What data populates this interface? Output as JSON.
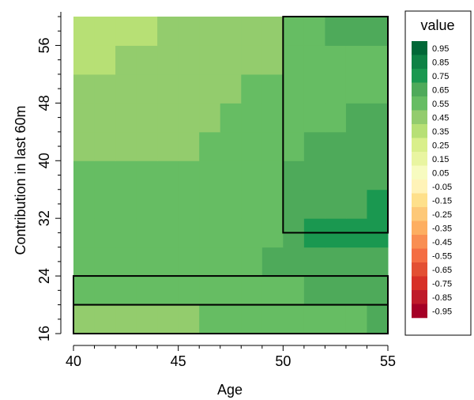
{
  "chart_data": {
    "type": "heatmap",
    "xlabel": "Age",
    "ylabel": "Contribution in last 60m",
    "x_ticks": [
      40,
      45,
      50,
      55
    ],
    "y_ticks": [
      16,
      24,
      32,
      40,
      48,
      56
    ],
    "xlim": [
      40,
      55
    ],
    "ylim": [
      16,
      60
    ],
    "x_edges": [
      40,
      41,
      42,
      43,
      44,
      45,
      46,
      47,
      48,
      49,
      50,
      51,
      52,
      53,
      54,
      55
    ],
    "y_edges": [
      16,
      20,
      24,
      28,
      32,
      36,
      40,
      44,
      48,
      52,
      56,
      60
    ],
    "z": [
      [
        0.5,
        0.5,
        0.5,
        0.5,
        0.5,
        0.5,
        0.6,
        0.6,
        0.6,
        0.6,
        0.6,
        0.6,
        0.6,
        0.6,
        0.7
      ],
      [
        0.55,
        0.55,
        0.55,
        0.6,
        0.6,
        0.6,
        0.6,
        0.6,
        0.6,
        0.6,
        0.6,
        0.7,
        0.7,
        0.7,
        0.7
      ],
      [
        0.55,
        0.6,
        0.6,
        0.6,
        0.6,
        0.6,
        0.6,
        0.6,
        0.6,
        0.65,
        0.65,
        0.65,
        0.7,
        0.7,
        0.7
      ],
      [
        0.55,
        0.55,
        0.55,
        0.55,
        0.6,
        0.6,
        0.6,
        0.6,
        0.6,
        0.6,
        0.65,
        0.75,
        0.75,
        0.75,
        0.75
      ],
      [
        0.55,
        0.55,
        0.55,
        0.55,
        0.55,
        0.55,
        0.6,
        0.6,
        0.6,
        0.6,
        0.65,
        0.7,
        0.7,
        0.7,
        0.75
      ],
      [
        0.55,
        0.55,
        0.55,
        0.55,
        0.55,
        0.55,
        0.55,
        0.55,
        0.6,
        0.6,
        0.65,
        0.7,
        0.7,
        0.7,
        0.7
      ],
      [
        0.45,
        0.45,
        0.5,
        0.5,
        0.5,
        0.5,
        0.55,
        0.55,
        0.55,
        0.55,
        0.6,
        0.65,
        0.7,
        0.7,
        0.7
      ],
      [
        0.45,
        0.45,
        0.45,
        0.45,
        0.45,
        0.5,
        0.5,
        0.55,
        0.55,
        0.55,
        0.55,
        0.6,
        0.6,
        0.7,
        0.7
      ],
      [
        0.45,
        0.45,
        0.45,
        0.45,
        0.45,
        0.45,
        0.45,
        0.45,
        0.55,
        0.55,
        0.55,
        0.6,
        0.6,
        0.6,
        0.6
      ],
      [
        0.35,
        0.35,
        0.45,
        0.45,
        0.45,
        0.45,
        0.45,
        0.45,
        0.45,
        0.45,
        0.55,
        0.6,
        0.6,
        0.6,
        0.6
      ],
      [
        0.35,
        0.35,
        0.35,
        0.35,
        0.45,
        0.45,
        0.45,
        0.45,
        0.45,
        0.45,
        0.55,
        0.55,
        0.65,
        0.65,
        0.65
      ]
    ],
    "rectangles": [
      {
        "x0": 40,
        "x1": 55,
        "y0": 16,
        "y1": 20
      },
      {
        "x0": 40,
        "x1": 55,
        "y0": 20,
        "y1": 24
      },
      {
        "x0": 50,
        "x1": 55,
        "y0": 30,
        "y1": 60
      }
    ],
    "legend": {
      "title": "value",
      "position": "right",
      "entries": [
        {
          "label": "0.95",
          "color": "#006837"
        },
        {
          "label": "0.85",
          "color": "#0e8245"
        },
        {
          "label": "0.75",
          "color": "#1a9850"
        },
        {
          "label": "0.65",
          "color": "#4eaa5a"
        },
        {
          "label": "0.55",
          "color": "#66bd63"
        },
        {
          "label": "0.45",
          "color": "#93cc6d"
        },
        {
          "label": "0.35",
          "color": "#b7e075"
        },
        {
          "label": "0.25",
          "color": "#d9ef8b"
        },
        {
          "label": "0.15",
          "color": "#e9f5a1"
        },
        {
          "label": "0.05",
          "color": "#f7fbc0"
        },
        {
          "label": "-0.05",
          "color": "#fff3b8"
        },
        {
          "label": "-0.15",
          "color": "#fee08b"
        },
        {
          "label": "-0.25",
          "color": "#fdc878"
        },
        {
          "label": "-0.35",
          "color": "#fdae61"
        },
        {
          "label": "-0.45",
          "color": "#f98e52"
        },
        {
          "label": "-0.55",
          "color": "#f46d43"
        },
        {
          "label": "-0.65",
          "color": "#e34f33"
        },
        {
          "label": "-0.75",
          "color": "#d73027"
        },
        {
          "label": "-0.85",
          "color": "#bf1a2a"
        },
        {
          "label": "-0.95",
          "color": "#a50026"
        }
      ]
    },
    "grid": false
  }
}
